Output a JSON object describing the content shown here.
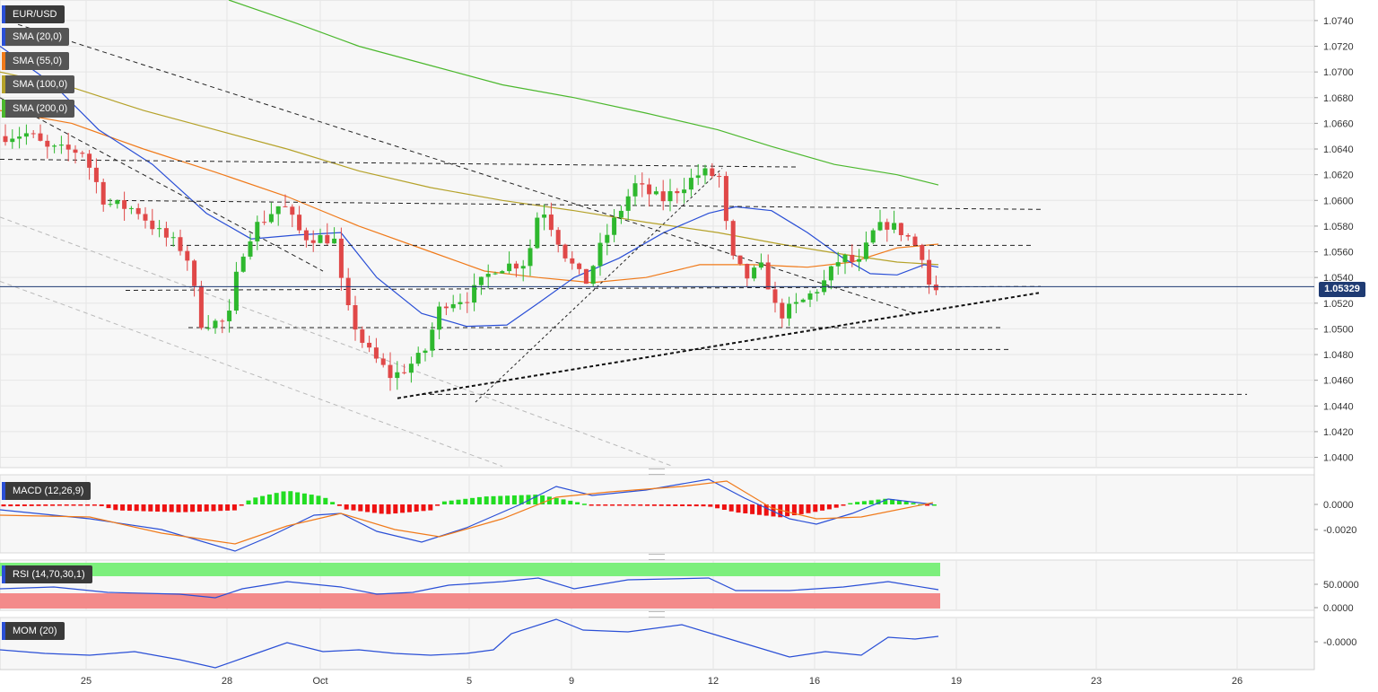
{
  "chart_data": {
    "type": "candlestick",
    "instrument": "EUR/USD",
    "indicators": {
      "sma": [
        "SMA (20,0)",
        "SMA (55,0)",
        "SMA (100,0)",
        "SMA (200,0)"
      ],
      "macd": "MACD (12,26,9)",
      "rsi": "RSI (14,70,30,1)",
      "mom": "MOM (20)"
    },
    "x_ticks": [
      "25",
      "28",
      "Oct",
      "5",
      "9",
      "12",
      "16",
      "19",
      "23",
      "26"
    ],
    "price_ticks": [
      "1.0740",
      "1.0720",
      "1.0700",
      "1.0680",
      "1.0660",
      "1.0640",
      "1.0620",
      "1.0600",
      "1.0580",
      "1.0560",
      "1.0540",
      "1.0520",
      "1.0500",
      "1.0480",
      "1.0460",
      "1.0440",
      "1.0420",
      "1.0400"
    ],
    "ylim": [
      1.0392,
      1.0756
    ],
    "last_price": "1.05329",
    "last_price_value": 1.05329,
    "macd_ticks": [
      "0.0000",
      "-0.0020"
    ],
    "rsi_ticks": [
      "50.0000",
      "0.0000"
    ],
    "mom_ticks": [
      "-0.0000"
    ],
    "colors": {
      "up": "#2eb82e",
      "down": "#e04848",
      "sma20": "#2a4fd6",
      "sma55": "#f07a1a",
      "sma100": "#b5a22a",
      "sma200": "#4cb82e",
      "price_line": "#1f3b73"
    }
  }
}
